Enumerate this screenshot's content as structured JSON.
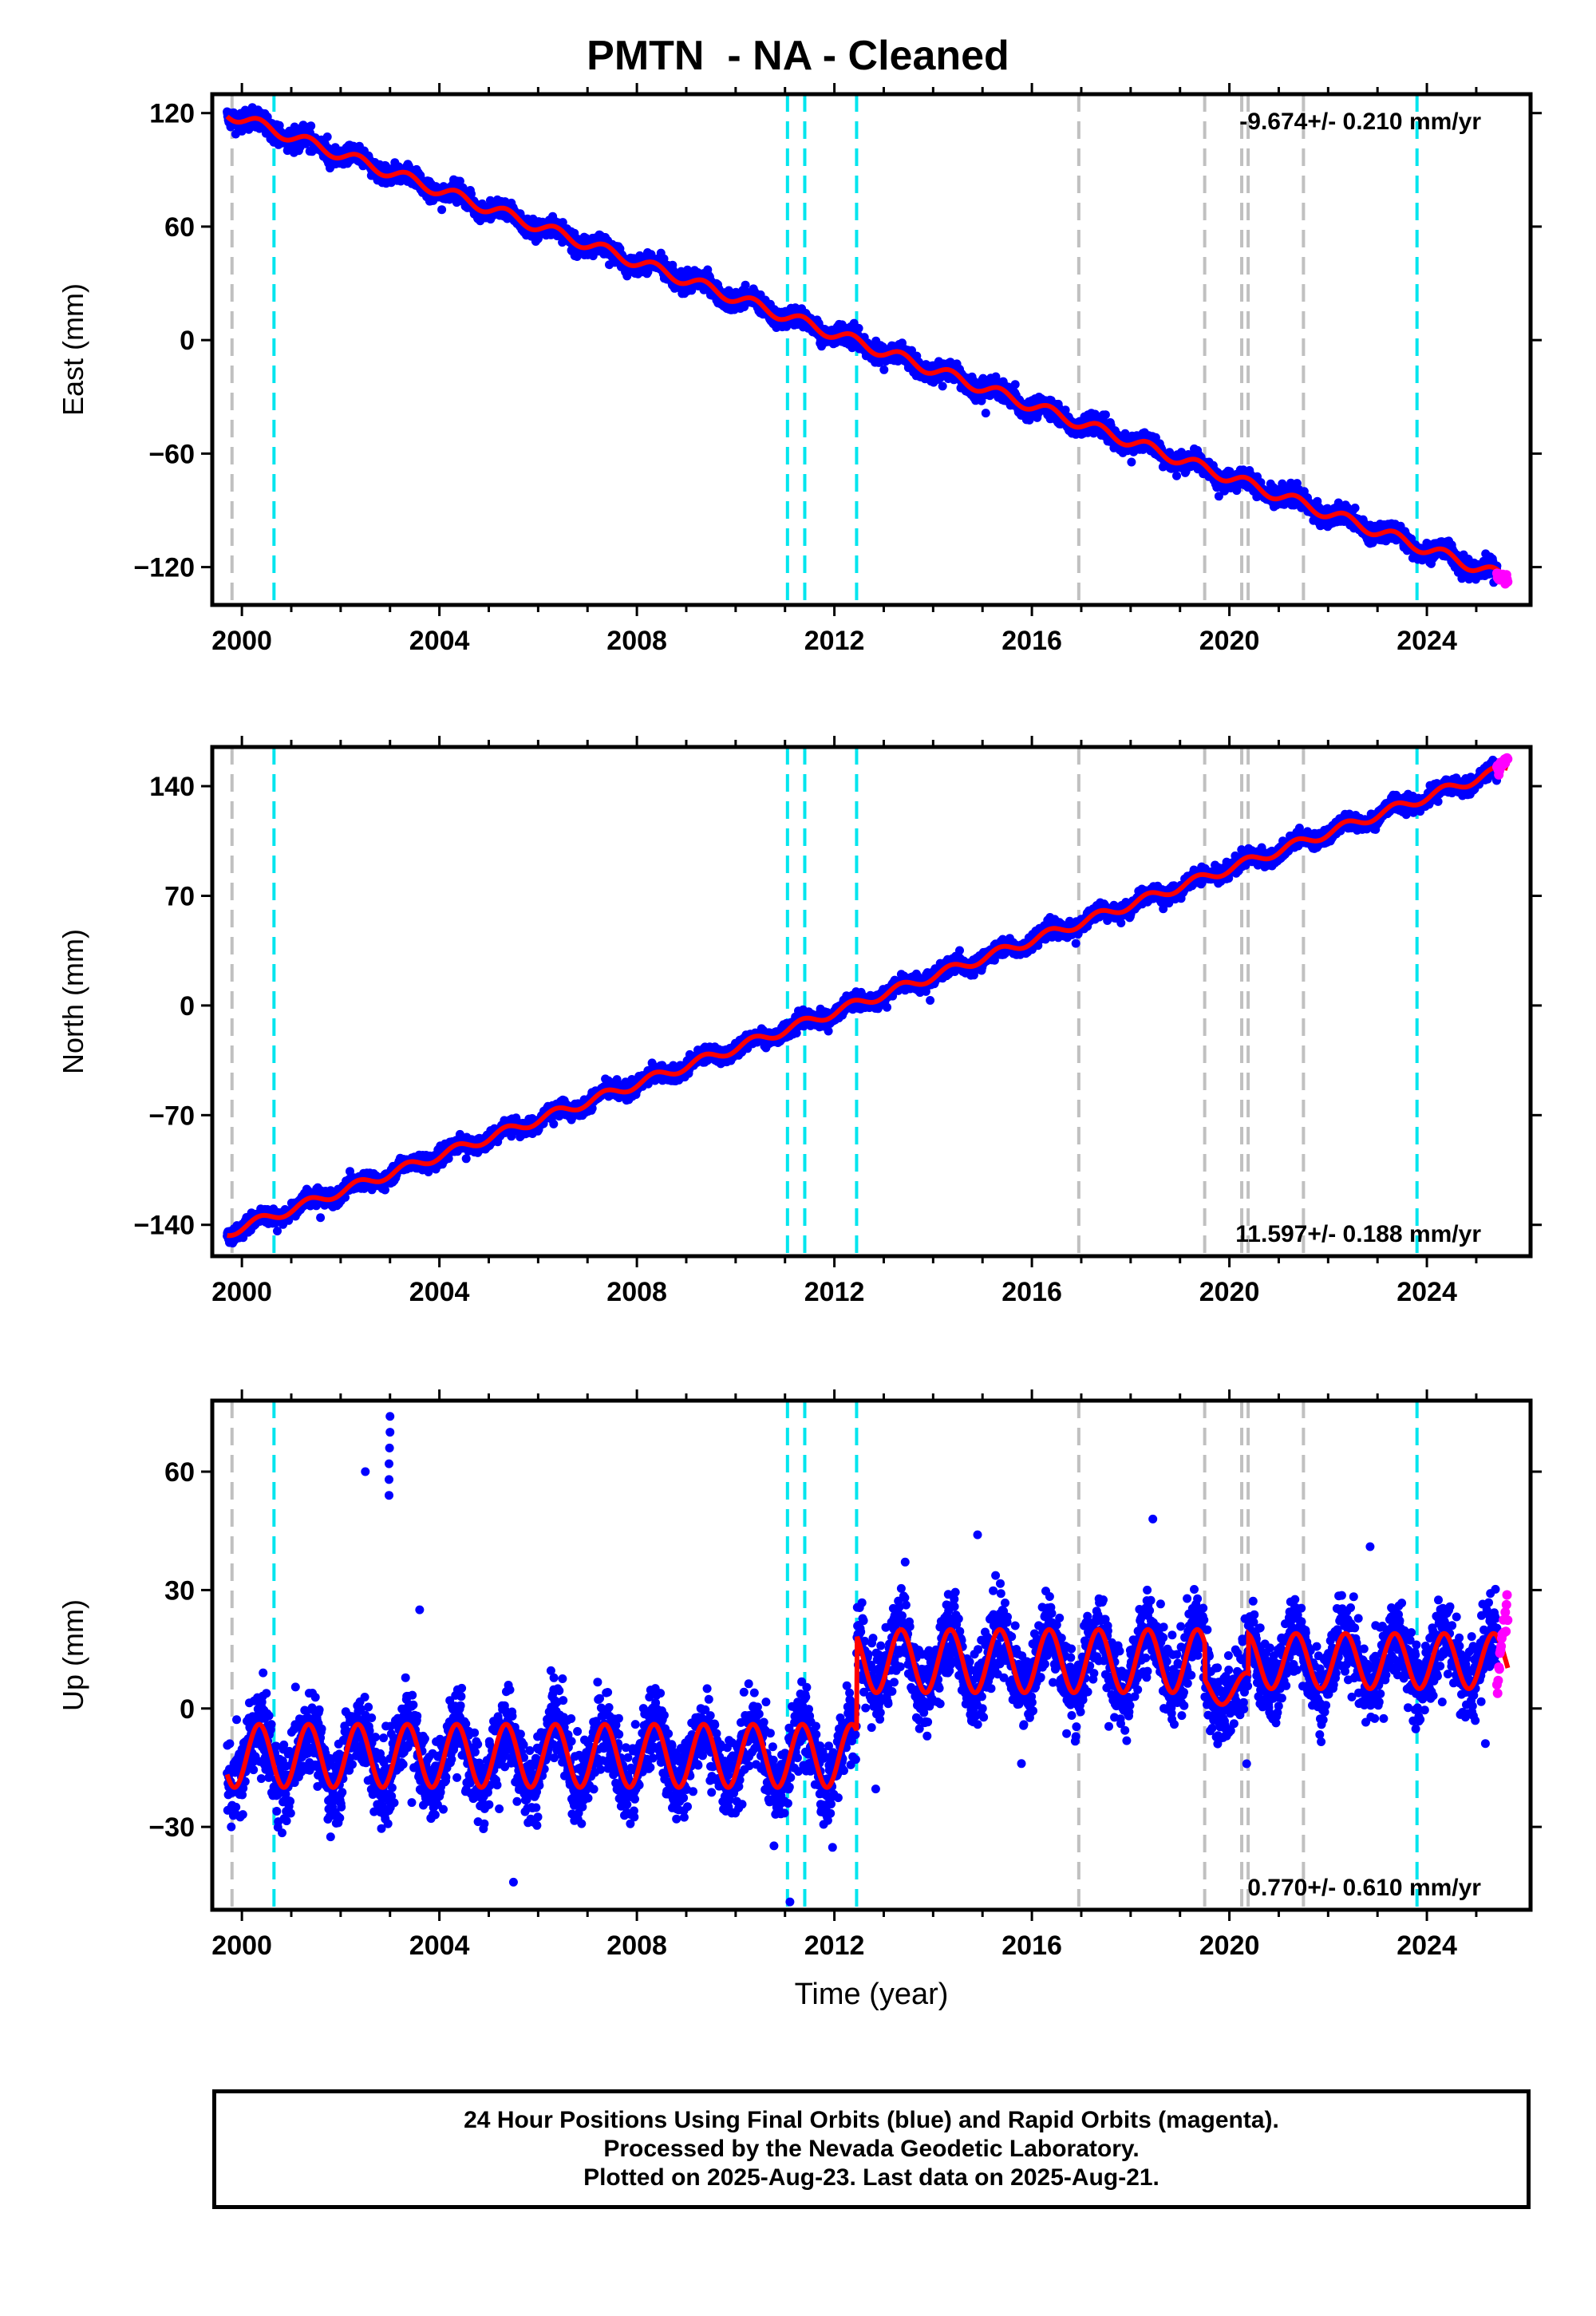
{
  "title": "PMTN  - NA - Cleaned",
  "footer": {
    "line1": "24 Hour Positions Using Final Orbits (blue) and Rapid Orbits (magenta).",
    "line2": "Processed by the Nevada Geodetic Laboratory.",
    "line3": "Plotted on 2025-Aug-23. Last data on 2025-Aug-21."
  },
  "colors": {
    "final_orbits": "#0000ff",
    "rapid_orbits": "#ff00ff",
    "model_fit": "#ff0000",
    "equipment_change": "#00e5ee",
    "earthquake": "#c0c0c0"
  },
  "chart_data": [
    {
      "type": "scatter",
      "panel": "east",
      "ylabel": "East (mm)",
      "xlabel": "",
      "rate_label": "-9.674+/- 0.210 mm/yr",
      "rate_position": "top-right",
      "xlim": [
        1999.4,
        2026.1
      ],
      "ylim": [
        -140,
        130
      ],
      "yticks": [
        120,
        60,
        0,
        -60,
        -120
      ],
      "ytick_labels": [
        "120",
        "60",
        "0",
        "−60",
        "−120"
      ],
      "xticks": [
        2000,
        2004,
        2008,
        2012,
        2016,
        2020,
        2024
      ],
      "xtick_labels": [
        "2000",
        "2004",
        "2008",
        "2012",
        "2016",
        "2020",
        "2024"
      ],
      "series": [
        {
          "role": "final",
          "start": 1999.7,
          "end": 2025.42,
          "value_at_start": 121,
          "value_at_end": -128,
          "seasonal_amp": 3,
          "scatter": 3.5
        },
        {
          "role": "rapid",
          "start": 2025.42,
          "end": 2025.64,
          "value_at_start": -124,
          "value_at_end": -127,
          "scatter": 2.5
        },
        {
          "role": "model",
          "start": 1999.7,
          "end": 2025.64,
          "value_at_start": 120,
          "value_at_end": -126,
          "seasonal_amp": 3
        }
      ],
      "vlines_cyan": [
        2000.65,
        2011.05,
        2011.4,
        2012.45,
        2023.8
      ],
      "vlines_gray": [
        1999.8,
        2016.95,
        2019.5,
        2020.25,
        2020.38,
        2021.5
      ]
    },
    {
      "type": "scatter",
      "panel": "north",
      "ylabel": "North (mm)",
      "xlabel": "",
      "rate_label": "11.597+/- 0.188 mm/yr",
      "rate_position": "bottom-right",
      "xlim": [
        1999.4,
        2026.1
      ],
      "ylim": [
        -160,
        165
      ],
      "yticks": [
        140,
        70,
        0,
        -70,
        -140
      ],
      "ytick_labels": [
        "140",
        "70",
        "0",
        "−70",
        "−140"
      ],
      "xticks": [
        2000,
        2004,
        2008,
        2012,
        2016,
        2020,
        2024
      ],
      "xtick_labels": [
        "2000",
        "2004",
        "2008",
        "2012",
        "2016",
        "2020",
        "2024"
      ],
      "series": [
        {
          "role": "final",
          "start": 1999.7,
          "end": 2025.42,
          "value_at_start": -145,
          "value_at_end": 150,
          "seasonal_amp": 3,
          "scatter": 3.5
        },
        {
          "role": "rapid",
          "start": 2025.42,
          "end": 2025.64,
          "value_at_start": 150,
          "value_at_end": 158,
          "scatter": 2.5
        },
        {
          "role": "model",
          "start": 1999.7,
          "end": 2025.64,
          "value_at_start": -145,
          "value_at_end": 152,
          "seasonal_amp": 3
        }
      ],
      "vlines_cyan": [
        2000.65,
        2011.05,
        2011.4,
        2012.45,
        2023.8
      ],
      "vlines_gray": [
        1999.8,
        2016.95,
        2019.5,
        2020.25,
        2020.38,
        2021.5
      ]
    },
    {
      "type": "scatter",
      "panel": "up",
      "ylabel": "Up (mm)",
      "xlabel": "Time (year)",
      "rate_label": "0.770+/- 0.610 mm/yr",
      "rate_position": "bottom-right",
      "xlim": [
        1999.4,
        2026.1
      ],
      "ylim": [
        -51,
        78
      ],
      "yticks": [
        60,
        30,
        0,
        -30
      ],
      "ytick_labels": [
        "60",
        "30",
        "0",
        "−30"
      ],
      "xticks": [
        2000,
        2004,
        2008,
        2012,
        2016,
        2020,
        2024
      ],
      "xtick_labels": [
        "2000",
        "2004",
        "2008",
        "2012",
        "2016",
        "2020",
        "2024"
      ],
      "model_segments": [
        {
          "start": 1999.7,
          "end": 2012.45,
          "level": -12,
          "seasonal_amp": 8
        },
        {
          "start": 2012.45,
          "end": 2019.5,
          "level": 12,
          "seasonal_amp": 8
        },
        {
          "start": 2019.5,
          "end": 2020.38,
          "level": 5,
          "seasonal_amp": 4
        },
        {
          "start": 2020.38,
          "end": 2025.64,
          "level": 12,
          "seasonal_amp": 7
        }
      ],
      "series": [
        {
          "role": "final",
          "start": 1999.7,
          "end": 2025.42,
          "scatter": 7
        },
        {
          "role": "rapid",
          "start": 2025.42,
          "end": 2025.64,
          "value_at_start": 10,
          "value_at_end": 25,
          "scatter": 4
        }
      ],
      "outliers": [
        {
          "x": 2002.5,
          "y": 60
        },
        {
          "x": 2002.98,
          "y": 54
        },
        {
          "x": 2002.98,
          "y": 58
        },
        {
          "x": 2002.98,
          "y": 62
        },
        {
          "x": 2002.99,
          "y": 66
        },
        {
          "x": 2003.0,
          "y": 70
        },
        {
          "x": 2003.0,
          "y": 74
        },
        {
          "x": 2003.6,
          "y": 25
        },
        {
          "x": 2005.5,
          "y": -44
        },
        {
          "x": 2011.1,
          "y": -49
        },
        {
          "x": 2014.9,
          "y": 44
        },
        {
          "x": 2018.45,
          "y": 48
        },
        {
          "x": 2022.85,
          "y": 41
        },
        {
          "x": 2020.35,
          "y": -14
        }
      ],
      "vlines_cyan": [
        2000.65,
        2011.05,
        2011.4,
        2012.45,
        2023.8
      ],
      "vlines_gray": [
        1999.8,
        2016.95,
        2019.5,
        2020.25,
        2020.38,
        2021.5
      ]
    }
  ]
}
